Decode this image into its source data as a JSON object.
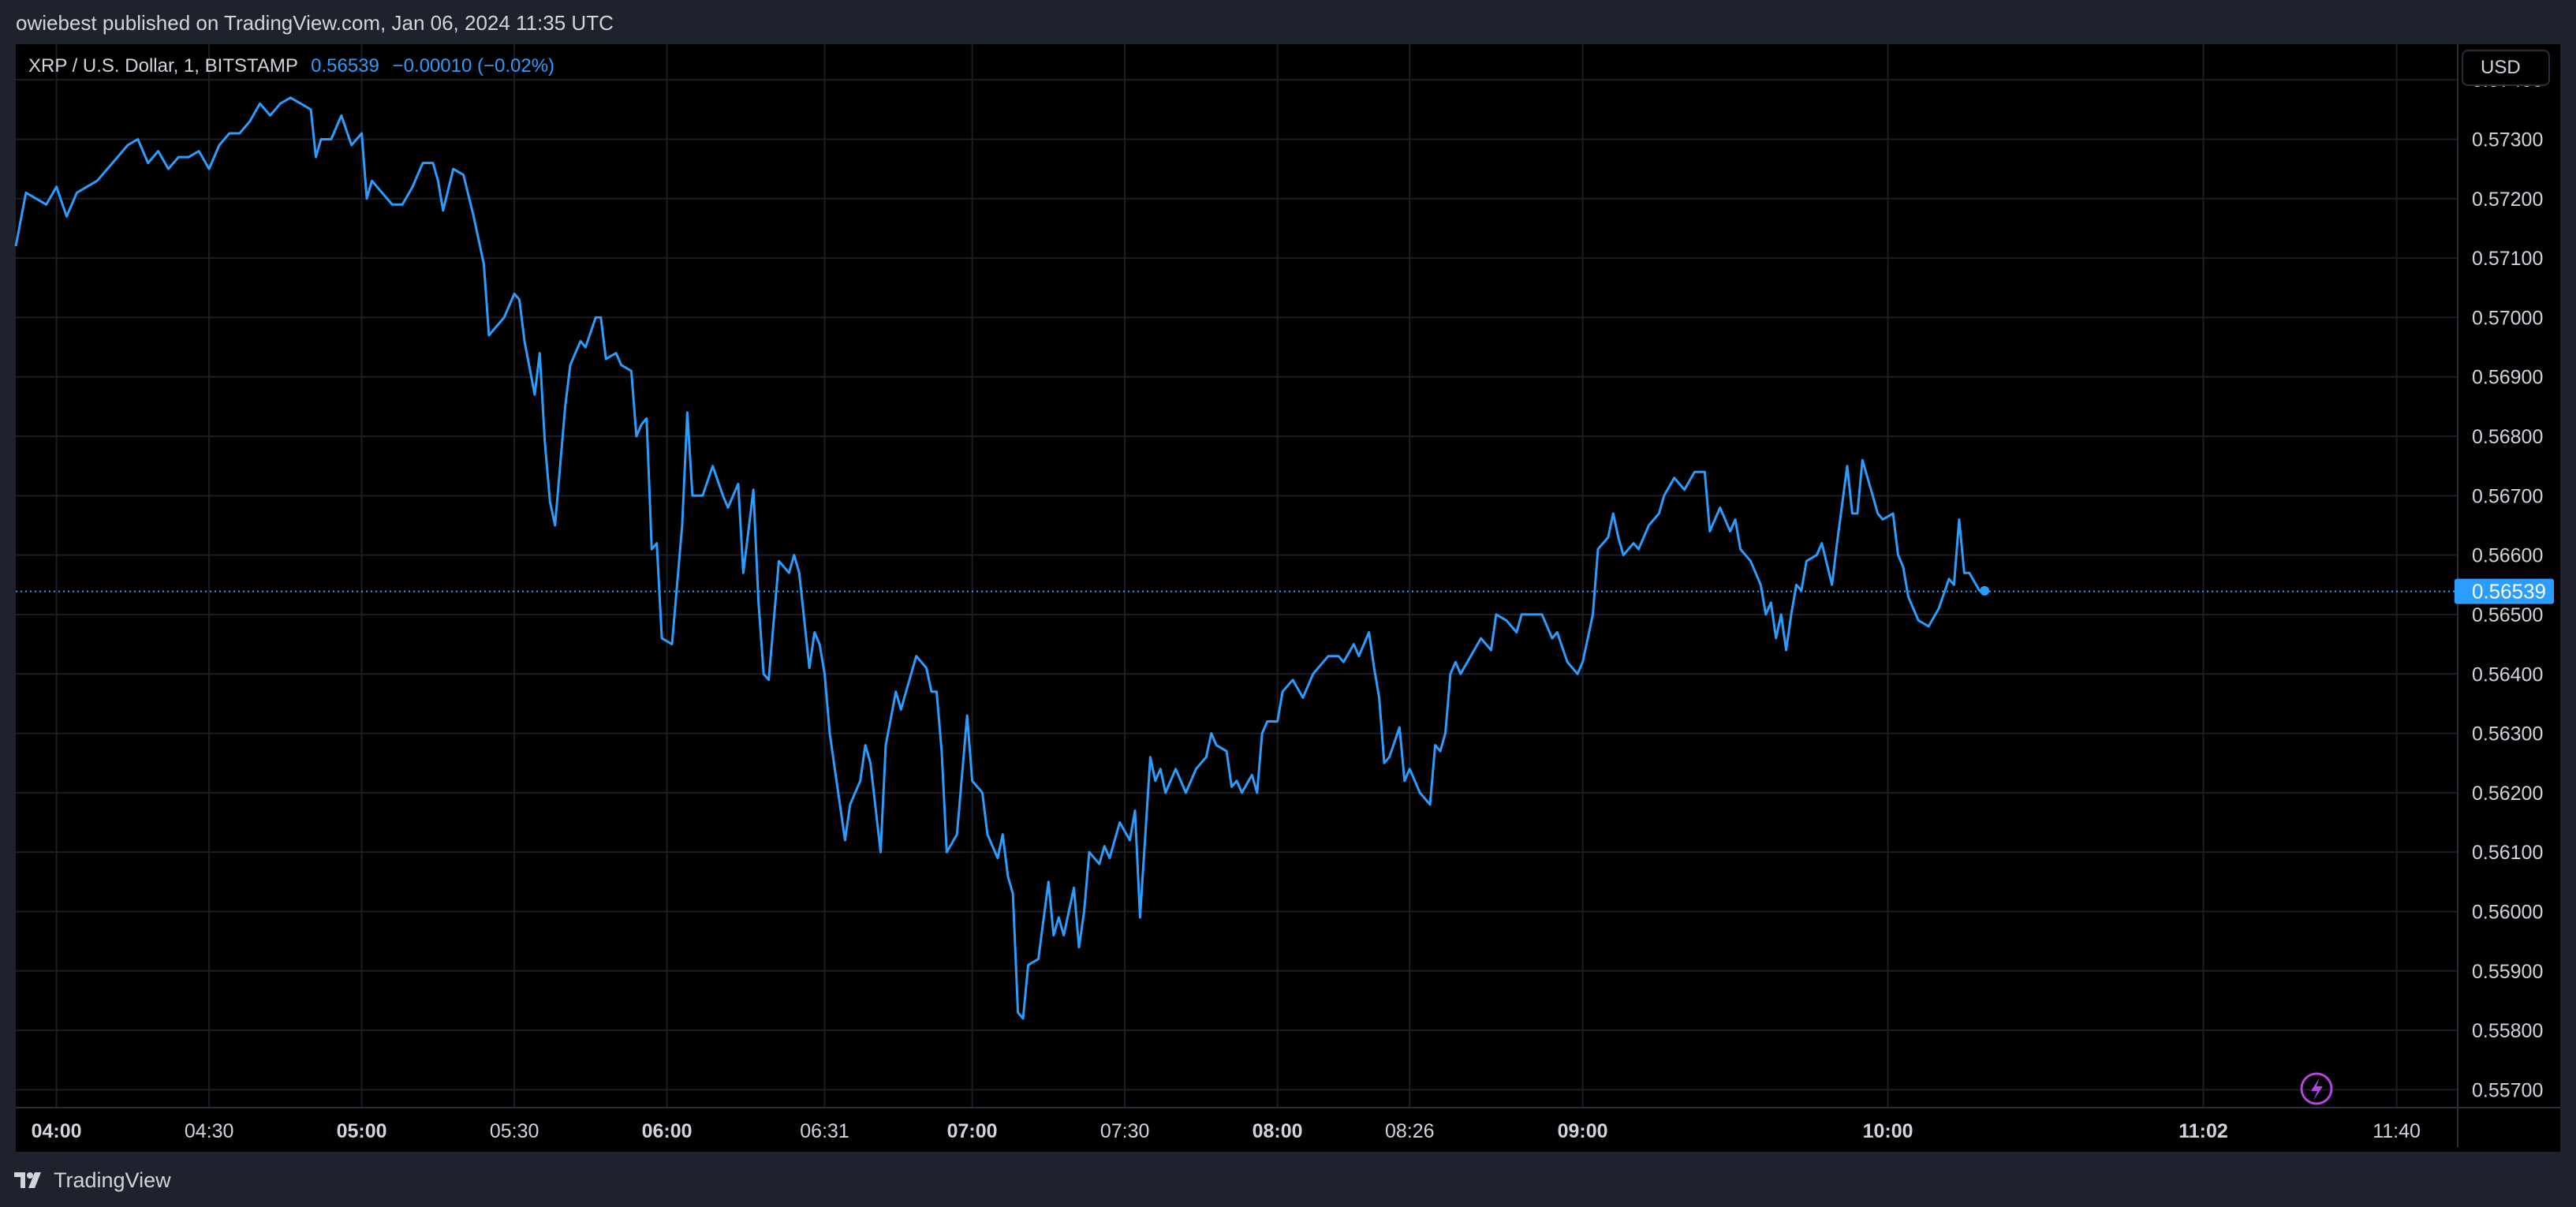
{
  "header": {
    "published_text": "owiebest published on TradingView.com, Jan 06, 2024 11:35 UTC"
  },
  "legend": {
    "symbol": "XRP / U.S. Dollar, 1, BITSTAMP",
    "last_price": "0.56539",
    "change": "−0.00010 (−0.02%)"
  },
  "currency_button": "USD",
  "footer": {
    "brand": "TradingView"
  },
  "colors": {
    "line": "#2a9dff",
    "background": "#000000",
    "frame": "#1e222d",
    "grid": "#1b1e26",
    "price_tag": "#2a9dff",
    "lightning_icon": "#b544e0"
  },
  "icons": {
    "lightning": "lightning-icon",
    "brand": "tradingview-logo-icon"
  },
  "chart_data": {
    "type": "line",
    "title": "XRP / U.S. Dollar, 1, BITSTAMP",
    "xlabel": "",
    "ylabel": "",
    "ylim": [
      0.5567,
      0.5746
    ],
    "xlim": [
      "03:52",
      "11:52"
    ],
    "grid": true,
    "y_ticks": [
      "0.57400",
      "0.57300",
      "0.57200",
      "0.57100",
      "0.57000",
      "0.56900",
      "0.56800",
      "0.56700",
      "0.56600",
      "0.56500",
      "0.56400",
      "0.56300",
      "0.56200",
      "0.56100",
      "0.56000",
      "0.55900",
      "0.55800",
      "0.55700"
    ],
    "y_tick_values": [
      0.574,
      0.573,
      0.572,
      0.571,
      0.57,
      0.569,
      0.568,
      0.567,
      0.566,
      0.565,
      0.564,
      0.563,
      0.562,
      0.561,
      0.56,
      0.559,
      0.558,
      0.557
    ],
    "x_ticks": [
      {
        "label": "04:00",
        "time": "04:00",
        "bold": true
      },
      {
        "label": "04:30",
        "time": "04:30",
        "bold": false
      },
      {
        "label": "05:00",
        "time": "05:00",
        "bold": true
      },
      {
        "label": "05:30",
        "time": "05:30",
        "bold": false
      },
      {
        "label": "06:00",
        "time": "06:00",
        "bold": true
      },
      {
        "label": "06:31",
        "time": "06:31",
        "bold": false
      },
      {
        "label": "07:00",
        "time": "07:00",
        "bold": true
      },
      {
        "label": "07:30",
        "time": "07:30",
        "bold": false
      },
      {
        "label": "08:00",
        "time": "08:00",
        "bold": true
      },
      {
        "label": "08:26",
        "time": "08:26",
        "bold": false
      },
      {
        "label": "09:00",
        "time": "09:00",
        "bold": true
      },
      {
        "label": "10:00",
        "time": "10:00",
        "bold": true
      },
      {
        "label": "11:02",
        "time": "11:02",
        "bold": true
      },
      {
        "label": "11:40",
        "time": "11:40",
        "bold": false
      }
    ],
    "last_price_label": "0.56539",
    "last_price": 0.56539,
    "series": [
      {
        "name": "XRP / U.S. Dollar",
        "points": [
          [
            "03:52",
            0.5712
          ],
          [
            "03:54",
            0.5721
          ],
          [
            "03:56",
            0.572
          ],
          [
            "03:58",
            0.5719
          ],
          [
            "04:00",
            0.5722
          ],
          [
            "04:02",
            0.5717
          ],
          [
            "04:04",
            0.5721
          ],
          [
            "04:06",
            0.5722
          ],
          [
            "04:08",
            0.5723
          ],
          [
            "04:10",
            0.5725
          ],
          [
            "04:12",
            0.5727
          ],
          [
            "04:14",
            0.5729
          ],
          [
            "04:16",
            0.573
          ],
          [
            "04:18",
            0.5726
          ],
          [
            "04:20",
            0.5728
          ],
          [
            "04:22",
            0.5725
          ],
          [
            "04:24",
            0.5727
          ],
          [
            "04:26",
            0.5727
          ],
          [
            "04:28",
            0.5728
          ],
          [
            "04:30",
            0.5725
          ],
          [
            "04:32",
            0.5729
          ],
          [
            "04:34",
            0.5731
          ],
          [
            "04:36",
            0.5731
          ],
          [
            "04:38",
            0.5733
          ],
          [
            "04:40",
            0.5736
          ],
          [
            "04:42",
            0.5734
          ],
          [
            "04:44",
            0.5736
          ],
          [
            "04:46",
            0.5737
          ],
          [
            "04:48",
            0.5736
          ],
          [
            "04:50",
            0.5735
          ],
          [
            "04:51",
            0.5727
          ],
          [
            "04:52",
            0.573
          ],
          [
            "04:54",
            0.573
          ],
          [
            "04:56",
            0.5734
          ],
          [
            "04:58",
            0.5729
          ],
          [
            "05:00",
            0.5731
          ],
          [
            "05:01",
            0.572
          ],
          [
            "05:02",
            0.5723
          ],
          [
            "05:04",
            0.5721
          ],
          [
            "05:06",
            0.5719
          ],
          [
            "05:08",
            0.5719
          ],
          [
            "05:10",
            0.5722
          ],
          [
            "05:12",
            0.5726
          ],
          [
            "05:14",
            0.5726
          ],
          [
            "05:15",
            0.5723
          ],
          [
            "05:16",
            0.5718
          ],
          [
            "05:18",
            0.5725
          ],
          [
            "05:20",
            0.5724
          ],
          [
            "05:22",
            0.5717
          ],
          [
            "05:24",
            0.5709
          ],
          [
            "05:25",
            0.5697
          ],
          [
            "05:26",
            0.5698
          ],
          [
            "05:28",
            0.57
          ],
          [
            "05:30",
            0.5704
          ],
          [
            "05:31",
            0.5703
          ],
          [
            "05:32",
            0.5696
          ],
          [
            "05:34",
            0.5687
          ],
          [
            "05:35",
            0.5694
          ],
          [
            "05:36",
            0.5679
          ],
          [
            "05:37",
            0.5669
          ],
          [
            "05:38",
            0.5665
          ],
          [
            "05:40",
            0.5685
          ],
          [
            "05:41",
            0.5692
          ],
          [
            "05:43",
            0.5696
          ],
          [
            "05:44",
            0.5695
          ],
          [
            "05:46",
            0.57
          ],
          [
            "05:47",
            0.57
          ],
          [
            "05:48",
            0.5693
          ],
          [
            "05:50",
            0.5694
          ],
          [
            "05:51",
            0.5692
          ],
          [
            "05:53",
            0.5691
          ],
          [
            "05:54",
            0.568
          ],
          [
            "05:55",
            0.5682
          ],
          [
            "05:56",
            0.5683
          ],
          [
            "05:57",
            0.5661
          ],
          [
            "05:58",
            0.5662
          ],
          [
            "05:59",
            0.5646
          ],
          [
            "06:01",
            0.5645
          ],
          [
            "06:03",
            0.5665
          ],
          [
            "06:04",
            0.5684
          ],
          [
            "06:05",
            0.567
          ],
          [
            "06:07",
            0.567
          ],
          [
            "06:09",
            0.5675
          ],
          [
            "06:11",
            0.567
          ],
          [
            "06:12",
            0.5668
          ],
          [
            "06:14",
            0.5672
          ],
          [
            "06:15",
            0.5657
          ],
          [
            "06:17",
            0.5671
          ],
          [
            "06:18",
            0.5652
          ],
          [
            "06:19",
            0.564
          ],
          [
            "06:20",
            0.5639
          ],
          [
            "06:22",
            0.5659
          ],
          [
            "06:24",
            0.5657
          ],
          [
            "06:25",
            0.566
          ],
          [
            "06:26",
            0.5657
          ],
          [
            "06:28",
            0.5641
          ],
          [
            "06:29",
            0.5647
          ],
          [
            "06:30",
            0.5645
          ],
          [
            "06:31",
            0.564
          ],
          [
            "06:32",
            0.563
          ],
          [
            "06:33",
            0.5624
          ],
          [
            "06:35",
            0.5612
          ],
          [
            "06:36",
            0.5618
          ],
          [
            "06:38",
            0.5622
          ],
          [
            "06:39",
            0.5628
          ],
          [
            "06:40",
            0.5625
          ],
          [
            "06:42",
            0.561
          ],
          [
            "06:43",
            0.5628
          ],
          [
            "06:45",
            0.5637
          ],
          [
            "06:46",
            0.5634
          ],
          [
            "06:48",
            0.564
          ],
          [
            "06:49",
            0.5643
          ],
          [
            "06:51",
            0.5641
          ],
          [
            "06:52",
            0.5637
          ],
          [
            "06:53",
            0.5637
          ],
          [
            "06:54",
            0.5627
          ],
          [
            "06:55",
            0.561
          ],
          [
            "06:57",
            0.5613
          ],
          [
            "06:59",
            0.5633
          ],
          [
            "07:00",
            0.5622
          ],
          [
            "07:02",
            0.562
          ],
          [
            "07:03",
            0.5613
          ],
          [
            "07:05",
            0.5609
          ],
          [
            "07:06",
            0.5613
          ],
          [
            "07:07",
            0.5606
          ],
          [
            "07:08",
            0.5603
          ],
          [
            "07:09",
            0.5583
          ],
          [
            "07:10",
            0.5582
          ],
          [
            "07:11",
            0.5591
          ],
          [
            "07:13",
            0.5592
          ],
          [
            "07:15",
            0.5605
          ],
          [
            "07:16",
            0.5596
          ],
          [
            "07:17",
            0.5599
          ],
          [
            "07:18",
            0.5596
          ],
          [
            "07:20",
            0.5604
          ],
          [
            "07:21",
            0.5594
          ],
          [
            "07:22",
            0.56
          ],
          [
            "07:23",
            0.561
          ],
          [
            "07:25",
            0.5608
          ],
          [
            "07:26",
            0.5611
          ],
          [
            "07:27",
            0.5609
          ],
          [
            "07:29",
            0.5615
          ],
          [
            "07:31",
            0.5612
          ],
          [
            "07:32",
            0.5617
          ],
          [
            "07:33",
            0.5599
          ],
          [
            "07:35",
            0.5626
          ],
          [
            "07:36",
            0.5622
          ],
          [
            "07:37",
            0.5624
          ],
          [
            "07:38",
            0.562
          ],
          [
            "07:40",
            0.5624
          ],
          [
            "07:42",
            0.562
          ],
          [
            "07:44",
            0.5624
          ],
          [
            "07:46",
            0.5626
          ],
          [
            "07:47",
            0.563
          ],
          [
            "07:48",
            0.5628
          ],
          [
            "07:50",
            0.5627
          ],
          [
            "07:51",
            0.5621
          ],
          [
            "07:52",
            0.5622
          ],
          [
            "07:53",
            0.562
          ],
          [
            "07:55",
            0.5623
          ],
          [
            "07:56",
            0.562
          ],
          [
            "07:57",
            0.563
          ],
          [
            "07:58",
            0.5632
          ],
          [
            "08:00",
            0.5632
          ],
          [
            "08:01",
            0.5637
          ],
          [
            "08:03",
            0.5639
          ],
          [
            "08:05",
            0.5636
          ],
          [
            "08:07",
            0.564
          ],
          [
            "08:08",
            0.5641
          ],
          [
            "08:10",
            0.5643
          ],
          [
            "08:12",
            0.5643
          ],
          [
            "08:13",
            0.5642
          ],
          [
            "08:15",
            0.5645
          ],
          [
            "08:16",
            0.5643
          ],
          [
            "08:18",
            0.5647
          ],
          [
            "08:19",
            0.5641
          ],
          [
            "08:20",
            0.5636
          ],
          [
            "08:21",
            0.5625
          ],
          [
            "08:22",
            0.5626
          ],
          [
            "08:24",
            0.5631
          ],
          [
            "08:25",
            0.5622
          ],
          [
            "08:26",
            0.5624
          ],
          [
            "08:28",
            0.562
          ],
          [
            "08:30",
            0.5618
          ],
          [
            "08:31",
            0.5628
          ],
          [
            "08:32",
            0.5627
          ],
          [
            "08:33",
            0.563
          ],
          [
            "08:34",
            0.564
          ],
          [
            "08:35",
            0.5642
          ],
          [
            "08:36",
            0.564
          ],
          [
            "08:38",
            0.5643
          ],
          [
            "08:40",
            0.5646
          ],
          [
            "08:42",
            0.5644
          ],
          [
            "08:43",
            0.565
          ],
          [
            "08:45",
            0.5649
          ],
          [
            "08:47",
            0.5647
          ],
          [
            "08:48",
            0.565
          ],
          [
            "08:50",
            0.565
          ],
          [
            "08:52",
            0.565
          ],
          [
            "08:54",
            0.5646
          ],
          [
            "08:55",
            0.5647
          ],
          [
            "08:57",
            0.5642
          ],
          [
            "08:59",
            0.564
          ],
          [
            "09:00",
            0.5642
          ],
          [
            "09:01",
            0.5646
          ],
          [
            "09:02",
            0.565
          ],
          [
            "09:03",
            0.5661
          ],
          [
            "09:05",
            0.5663
          ],
          [
            "09:06",
            0.5667
          ],
          [
            "09:07",
            0.5663
          ],
          [
            "09:08",
            0.566
          ],
          [
            "09:10",
            0.5662
          ],
          [
            "09:11",
            0.5661
          ],
          [
            "09:13",
            0.5665
          ],
          [
            "09:15",
            0.5667
          ],
          [
            "09:16",
            0.567
          ],
          [
            "09:18",
            0.5673
          ],
          [
            "09:20",
            0.5671
          ],
          [
            "09:22",
            0.5674
          ],
          [
            "09:24",
            0.5674
          ],
          [
            "09:25",
            0.5664
          ],
          [
            "09:27",
            0.5668
          ],
          [
            "09:29",
            0.5664
          ],
          [
            "09:30",
            0.5666
          ],
          [
            "09:31",
            0.5661
          ],
          [
            "09:33",
            0.5659
          ],
          [
            "09:35",
            0.5655
          ],
          [
            "09:36",
            0.565
          ],
          [
            "09:37",
            0.5652
          ],
          [
            "09:38",
            0.5646
          ],
          [
            "09:39",
            0.565
          ],
          [
            "09:40",
            0.5644
          ],
          [
            "09:41",
            0.565
          ],
          [
            "09:42",
            0.5655
          ],
          [
            "09:43",
            0.5654
          ],
          [
            "09:44",
            0.5659
          ],
          [
            "09:46",
            0.566
          ],
          [
            "09:47",
            0.5662
          ],
          [
            "09:49",
            0.5655
          ],
          [
            "09:50",
            0.5662
          ],
          [
            "09:52",
            0.5675
          ],
          [
            "09:53",
            0.5667
          ],
          [
            "09:54",
            0.5667
          ],
          [
            "09:55",
            0.5676
          ],
          [
            "09:57",
            0.567
          ],
          [
            "09:58",
            0.5667
          ],
          [
            "09:59",
            0.5666
          ],
          [
            "10:01",
            0.5667
          ],
          [
            "10:02",
            0.566
          ],
          [
            "10:03",
            0.5658
          ],
          [
            "10:04",
            0.5653
          ],
          [
            "10:06",
            0.5649
          ],
          [
            "10:08",
            0.5648
          ],
          [
            "10:10",
            0.5651
          ],
          [
            "10:12",
            0.5656
          ],
          [
            "10:13",
            0.5655
          ],
          [
            "10:14",
            0.5666
          ],
          [
            "10:15",
            0.5657
          ],
          [
            "10:16",
            0.5657
          ],
          [
            "10:18",
            0.5654
          ],
          [
            "10:19",
            0.5654
          ]
        ]
      }
    ]
  }
}
